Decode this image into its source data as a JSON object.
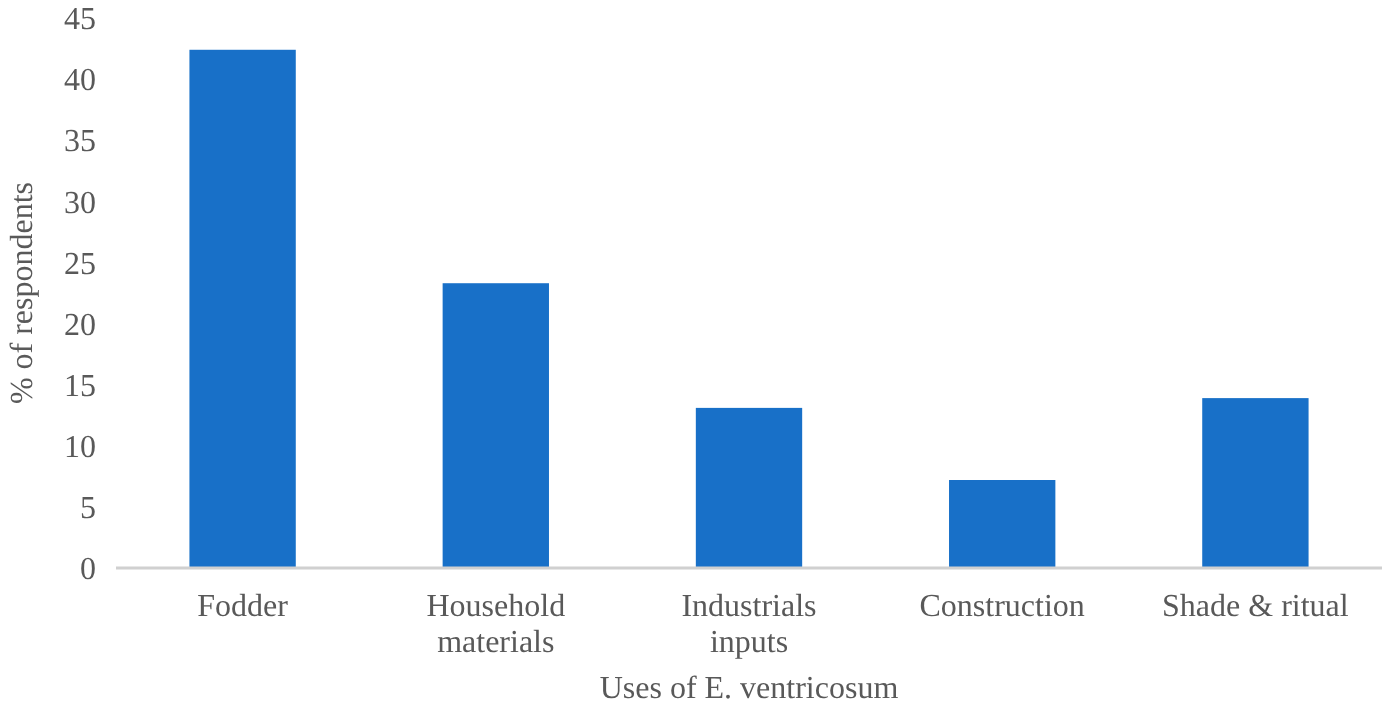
{
  "chart_data": {
    "type": "bar",
    "xlabel": "Uses of E. ventricosum",
    "ylabel": "% of respondents",
    "categories": [
      "Fodder",
      "Household materials",
      "Industrials inputs",
      "Construction",
      "Shade & ritual"
    ],
    "values": [
      42.4,
      23.3,
      13.1,
      7.2,
      13.9
    ],
    "color": "#1870c8",
    "ylim": [
      0,
      45
    ],
    "yticks": [
      0,
      5,
      10,
      15,
      20,
      25,
      30,
      35,
      40,
      45
    ],
    "grid": false
  }
}
